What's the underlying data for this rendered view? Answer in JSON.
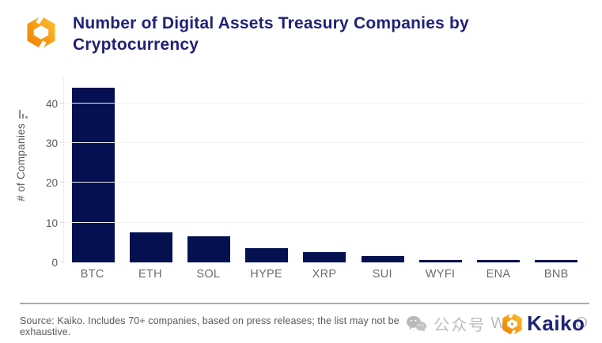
{
  "header": {
    "title": "Number of Digital Assets Treasury Companies by Cryptocurrency",
    "logo": "kaiko-hexagon-mark"
  },
  "chart_data": {
    "type": "bar",
    "title": "Number of Digital Assets Treasury Companies by Cryptocurrency",
    "categories": [
      "BTC",
      "ETH",
      "SOL",
      "HYPE",
      "XRP",
      "SUI",
      "WYFI",
      "ENA",
      "BNB"
    ],
    "values": [
      44,
      7.5,
      6.5,
      3.5,
      2.5,
      1.5,
      0.5,
      0.5,
      0.5
    ],
    "xlabel": "",
    "ylabel": "# of Companies",
    "yticks": [
      0,
      10,
      20,
      30,
      40
    ],
    "ylim": [
      0,
      46.5
    ],
    "grid": true,
    "legend": "none",
    "bar_color": "#041050"
  },
  "footer": {
    "source_note": "Source: Kaiko.  Includes 70+ companies, based on press releases; the list may not be exhaustive."
  },
  "brand": {
    "watermark_icon": "wechat-icon",
    "watermark_prefix": "公众号",
    "watermark_letter": "W",
    "watermark_suffix": "O",
    "logo_text": "Kaiko"
  },
  "colors": {
    "title_navy": "#21217a",
    "bar_navy": "#041050",
    "axis_text_gray": "#595959",
    "gridline_gray": "#f1f1f1",
    "divider_gray": "#ababab",
    "watermark_gray": "#bdbdbd",
    "logo_orange_light": "#fdc330",
    "logo_orange_dark": "#f07d00",
    "wordmark_navy": "#1f2377"
  }
}
